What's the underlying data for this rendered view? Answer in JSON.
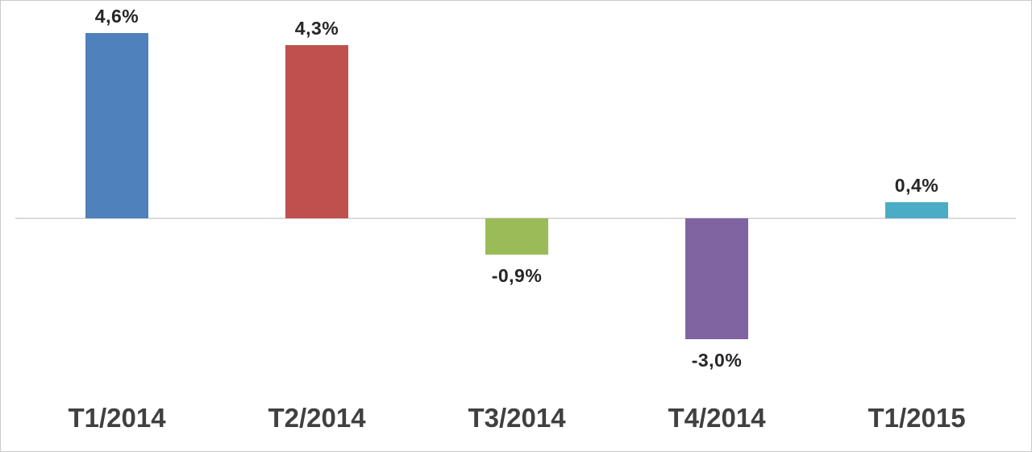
{
  "chart_data": {
    "type": "bar",
    "categories": [
      "T1/2014",
      "T2/2014",
      "T3/2014",
      "T4/2014",
      "T1/2015"
    ],
    "values": [
      4.6,
      4.3,
      -0.9,
      -3.0,
      0.4
    ],
    "value_labels": [
      "4,6%",
      "4,3%",
      "-0,9%",
      "-3,0%",
      "0,4%"
    ],
    "bar_colors": [
      "#4F81BD",
      "#C0504D",
      "#9BBB59",
      "#8064A2",
      "#4BACC6"
    ],
    "title": "",
    "xlabel": "",
    "ylabel": "",
    "ylim": [
      -3.6,
      5.4
    ],
    "grid": false,
    "legend_position": "none",
    "zero_line_color": "#DBDBDB",
    "value_label_color": "#262626",
    "axis_label_color": "#404040",
    "border_color": "#C9C9C9",
    "background_color": "#FFFFFF"
  }
}
